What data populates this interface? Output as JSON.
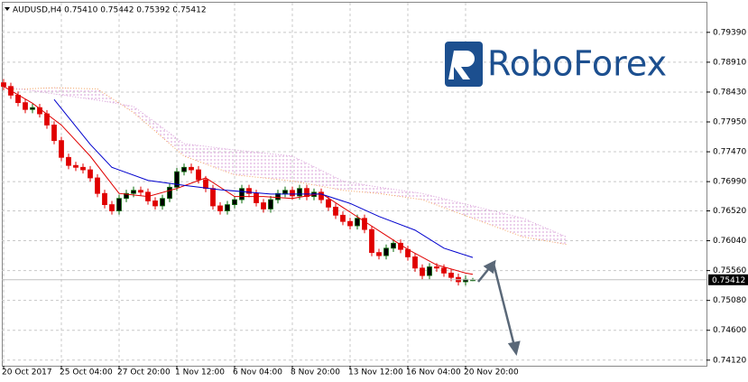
{
  "header": "AUDUSD,H4  0.75410 0.75442 0.75392 0.75412",
  "logo": "RoboForex",
  "chart_data": {
    "type": "candlestick",
    "up_color": "#0a6b0a",
    "down_color": "#e00000",
    "grid": true,
    "ylim": [
      0.7403,
      0.7991
    ],
    "yticks": [
      {
        "value": 0.7939,
        "label": "0.79390"
      },
      {
        "value": 0.7891,
        "label": "0.78910"
      },
      {
        "value": 0.7843,
        "label": "0.78430"
      },
      {
        "value": 0.7795,
        "label": "0.77950"
      },
      {
        "value": 0.7747,
        "label": "0.77470"
      },
      {
        "value": 0.7699,
        "label": "0.76990"
      },
      {
        "value": 0.7652,
        "label": "0.76520"
      },
      {
        "value": 0.7604,
        "label": "0.76040"
      },
      {
        "value": 0.7556,
        "label": "0.75560"
      },
      {
        "value": 0.7508,
        "label": "0.75080"
      },
      {
        "value": 0.746,
        "label": "0.74600"
      },
      {
        "value": 0.7412,
        "label": "0.74120"
      }
    ],
    "last_price": {
      "value": 0.75412,
      "label": "0.75412"
    },
    "categories": [
      "20 Oct 2017",
      null,
      null,
      null,
      null,
      null,
      null,
      null,
      "25 Oct 04:00",
      null,
      null,
      null,
      null,
      null,
      null,
      null,
      "27 Oct 20:00",
      null,
      null,
      null,
      null,
      null,
      null,
      null,
      "1 Nov 12:00",
      null,
      null,
      null,
      null,
      null,
      null,
      null,
      "6 Nov 04:00",
      null,
      null,
      null,
      null,
      null,
      null,
      null,
      "8 Nov 20:00",
      null,
      null,
      null,
      null,
      null,
      null,
      null,
      "13 Nov 12:00",
      null,
      null,
      null,
      null,
      null,
      null,
      null,
      "16 Nov 04:00",
      null,
      null,
      null,
      null,
      null,
      null,
      null,
      "20 Nov 20:00",
      null
    ],
    "open": [
      0.7858,
      0.7852,
      0.7838,
      0.7826,
      0.7815,
      0.7818,
      0.7808,
      0.779,
      0.7765,
      0.7738,
      0.7725,
      0.7722,
      0.7718,
      0.7705,
      0.768,
      0.7662,
      0.7652,
      0.7672,
      0.768,
      0.7685,
      0.7682,
      0.7668,
      0.766,
      0.7672,
      0.769,
      0.7715,
      0.7722,
      0.7718,
      0.7702,
      0.7688,
      0.766,
      0.7652,
      0.7662,
      0.767,
      0.7688,
      0.768,
      0.7665,
      0.7655,
      0.767,
      0.768,
      0.7685,
      0.7676,
      0.7688,
      0.7675,
      0.7682,
      0.767,
      0.7658,
      0.7645,
      0.7635,
      0.7628,
      0.764,
      0.7622,
      0.7585,
      0.758,
      0.7592,
      0.76,
      0.759,
      0.7578,
      0.756,
      0.7548,
      0.7562,
      0.756,
      0.7552,
      0.7545,
      0.7538,
      0.7541
    ],
    "high": [
      0.7864,
      0.7858,
      0.7844,
      0.7832,
      0.7824,
      0.7824,
      0.7814,
      0.7796,
      0.7771,
      0.7744,
      0.7731,
      0.7728,
      0.7724,
      0.7711,
      0.7686,
      0.7668,
      0.7678,
      0.7686,
      0.7691,
      0.7691,
      0.7688,
      0.7674,
      0.7678,
      0.7696,
      0.7721,
      0.7728,
      0.7728,
      0.7724,
      0.7708,
      0.7694,
      0.7666,
      0.7668,
      0.7676,
      0.7694,
      0.7694,
      0.7686,
      0.7671,
      0.7676,
      0.7686,
      0.7691,
      0.7691,
      0.7694,
      0.7694,
      0.7688,
      0.7688,
      0.7676,
      0.7664,
      0.7651,
      0.7641,
      0.7646,
      0.7646,
      0.7628,
      0.7591,
      0.7598,
      0.7606,
      0.7606,
      0.7596,
      0.7584,
      0.7566,
      0.7568,
      0.7568,
      0.7566,
      0.7558,
      0.7551,
      0.7548,
      0.75442
    ],
    "low": [
      0.7846,
      0.7832,
      0.782,
      0.7809,
      0.7809,
      0.7802,
      0.7784,
      0.7759,
      0.7732,
      0.7719,
      0.7716,
      0.7712,
      0.7699,
      0.7674,
      0.7656,
      0.7646,
      0.7646,
      0.7666,
      0.7674,
      0.7676,
      0.7662,
      0.7654,
      0.7654,
      0.7666,
      0.7684,
      0.7709,
      0.7712,
      0.7696,
      0.7682,
      0.7654,
      0.7646,
      0.7646,
      0.7656,
      0.7664,
      0.7674,
      0.7659,
      0.7649,
      0.7649,
      0.7664,
      0.7674,
      0.767,
      0.767,
      0.7669,
      0.7669,
      0.7664,
      0.7652,
      0.7639,
      0.7629,
      0.7622,
      0.7622,
      0.7616,
      0.7579,
      0.7574,
      0.7574,
      0.7586,
      0.7584,
      0.7572,
      0.7554,
      0.7542,
      0.7542,
      0.7554,
      0.7546,
      0.7539,
      0.7532,
      0.7532,
      0.75392
    ],
    "close": [
      0.7852,
      0.7838,
      0.7826,
      0.7815,
      0.7818,
      0.7808,
      0.779,
      0.7765,
      0.7738,
      0.7725,
      0.7722,
      0.7718,
      0.7705,
      0.768,
      0.7662,
      0.7652,
      0.7672,
      0.768,
      0.7685,
      0.7682,
      0.7668,
      0.766,
      0.7672,
      0.769,
      0.7715,
      0.7722,
      0.7718,
      0.7702,
      0.7688,
      0.766,
      0.7652,
      0.7662,
      0.767,
      0.7688,
      0.768,
      0.7665,
      0.7655,
      0.767,
      0.768,
      0.7685,
      0.7676,
      0.7688,
      0.7675,
      0.7682,
      0.767,
      0.7658,
      0.7645,
      0.7635,
      0.7628,
      0.764,
      0.7622,
      0.7585,
      0.758,
      0.7592,
      0.76,
      0.759,
      0.7578,
      0.756,
      0.7548,
      0.7562,
      0.756,
      0.7552,
      0.7545,
      0.7538,
      0.7542,
      0.75412
    ],
    "indicators": [
      {
        "style": "solid",
        "color": "#e00000",
        "x": [
          0,
          4,
          8,
          12,
          16,
          20,
          24,
          28,
          32,
          36,
          40,
          44,
          48,
          52,
          56,
          60,
          64,
          65
        ],
        "values": [
          0.7852,
          0.7825,
          0.779,
          0.774,
          0.768,
          0.7675,
          0.7688,
          0.7705,
          0.7675,
          0.7675,
          0.7672,
          0.768,
          0.765,
          0.762,
          0.759,
          0.7565,
          0.7552,
          0.755
        ]
      },
      {
        "style": "solid",
        "color": "#0000cd",
        "x": [
          7,
          12,
          15,
          20,
          25,
          30,
          37,
          44,
          48,
          52,
          57,
          61,
          65
        ],
        "values": [
          0.7831,
          0.7759,
          0.7722,
          0.7701,
          0.7693,
          0.7686,
          0.7679,
          0.7679,
          0.7664,
          0.7643,
          0.7621,
          0.7592,
          0.7577
        ]
      },
      {
        "style": "dotted",
        "color": "#f4a460",
        "x": [
          1,
          7,
          13,
          18,
          25,
          32,
          40,
          47,
          52,
          58,
          65,
          72,
          78
        ],
        "values": [
          0.7847,
          0.785,
          0.7848,
          0.781,
          0.774,
          0.771,
          0.77,
          0.7685,
          0.768,
          0.767,
          0.764,
          0.761,
          0.7598
        ]
      },
      {
        "style": "dotted",
        "color": "#d8a0d8",
        "x": [
          1,
          7,
          13,
          18,
          25,
          32,
          40,
          47,
          52,
          58,
          65,
          72,
          78
        ],
        "values": [
          0.785,
          0.784,
          0.783,
          0.782,
          0.776,
          0.775,
          0.774,
          0.77,
          0.769,
          0.768,
          0.766,
          0.764,
          0.761
        ]
      }
    ]
  }
}
